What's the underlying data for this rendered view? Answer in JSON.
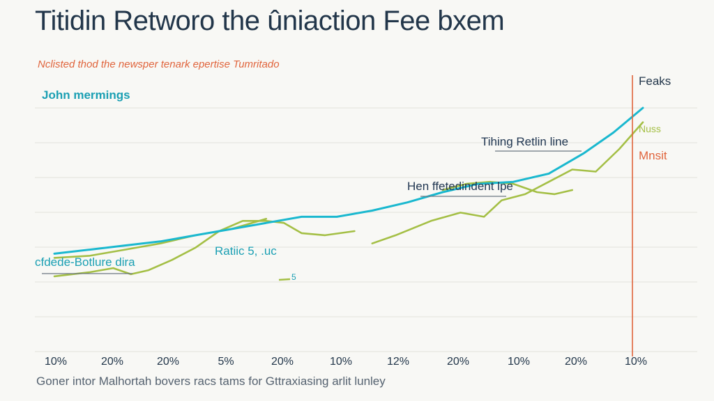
{
  "title": "Titidin Retworo the ûniaction Fee bxem",
  "subtitle": "Nclisted thod the newsper tenark epertise Tumritado",
  "caption": "Goner intor Malhortah bovers racs tams for Gttraxiasing arlit lunley",
  "colors": {
    "cyan_series": "#1ab8cf",
    "green_series": "#a4bf45",
    "marker_line": "#e0643c",
    "title": "#22364a",
    "grid": "#e2e2dc"
  },
  "annotations": {
    "john": "John mermings",
    "codede": "cfdede-Botlure dira",
    "ratio": "Ratiic 5, .uc",
    "hen": "Hen ffetedindent lpe",
    "tihing": "Tihing Retlin line",
    "peaks": "Feaks",
    "nuss": "Nuss",
    "mnsit": "Mnsit",
    "tick_mark": "5"
  },
  "chart_data": {
    "type": "line",
    "x_tick_labels": [
      "10%",
      "20%",
      "20%",
      "5%",
      "20%",
      "10%",
      "12%",
      "20%",
      "10%",
      "20%",
      "10%"
    ],
    "y_range": [
      0,
      100
    ],
    "grid": true,
    "series": [
      {
        "name": "John mermings",
        "color": "#1ab8cf",
        "x": [
          0,
          0.6,
          1.2,
          1.8,
          2.4,
          3,
          3.6,
          4.2,
          4.8,
          5.4,
          6,
          6.6,
          7.2,
          7.8,
          8.4,
          9,
          9.5,
          10
        ],
        "y": [
          29,
          31,
          33,
          35,
          38,
          41,
          44,
          47,
          47,
          50,
          54,
          59,
          63,
          64,
          68,
          78,
          88,
          100
        ]
      },
      {
        "name": "",
        "color": "#a4bf45",
        "segments": [
          {
            "x": [
              0,
              0.6,
              1,
              1.3,
              1.6,
              2,
              2.4,
              2.8,
              3.2,
              3.6,
              3.9,
              4.2,
              4.6,
              5.1
            ],
            "y": [
              18,
              20,
              22,
              19,
              21,
              26,
              32,
              40,
              45,
              45,
              44,
              39,
              38,
              40
            ]
          },
          {
            "x": [
              0,
              0.6,
              1.2,
              1.8,
              2.4,
              3,
              3.6
            ],
            "y": [
              27,
              28,
              31,
              34,
              38,
              41,
              46
            ]
          },
          {
            "x": [
              6.6,
              7,
              7.4,
              7.8,
              8.2,
              8.5,
              8.8
            ],
            "y": [
              60,
              63,
              64,
              63,
              59,
              58,
              60
            ]
          },
          {
            "x": [
              5.4,
              5.8,
              6.4,
              6.9,
              7.3,
              7.6,
              8,
              8.4,
              8.8,
              9.2,
              9.6,
              10
            ],
            "y": [
              34,
              38,
              45,
              49,
              47,
              55,
              58,
              64,
              70,
              69,
              80,
              93
            ]
          }
        ]
      }
    ],
    "vertical_marker": {
      "label": "Feaks",
      "x": 10
    }
  }
}
